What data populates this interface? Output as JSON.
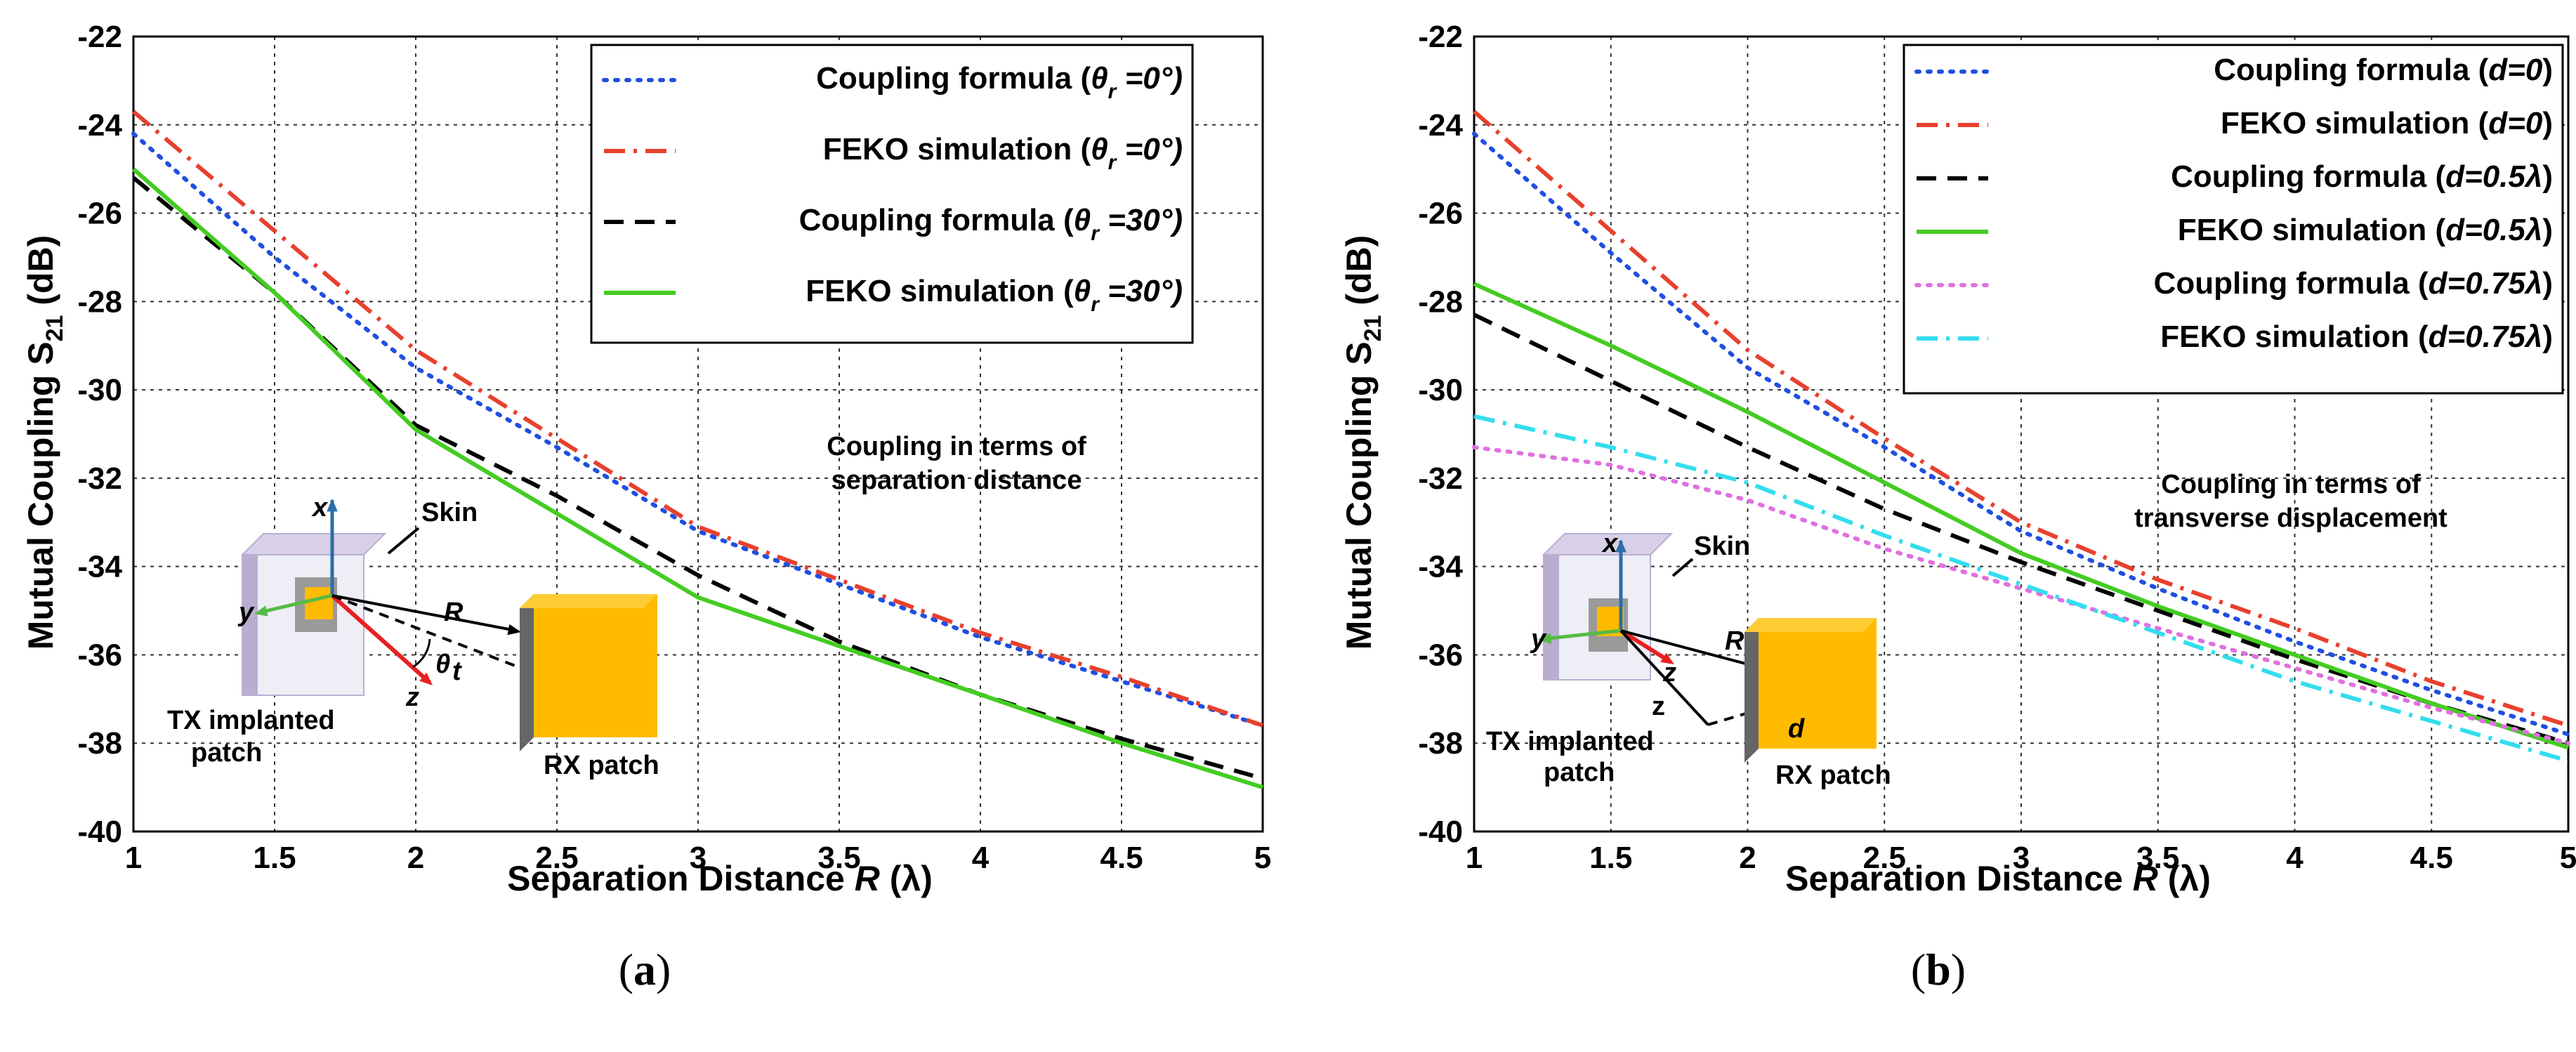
{
  "chart_data": [
    {
      "type": "line",
      "panel": "a",
      "caption": "(a)",
      "xlabel": "Separation Distance R (λ)",
      "ylabel": "Mutual Coupling S21 (dB)",
      "xlim": [
        1,
        5
      ],
      "ylim": [
        -40,
        -22
      ],
      "xticks": [
        1,
        1.5,
        2,
        2.5,
        3,
        3.5,
        4,
        4.5,
        5
      ],
      "yticks": [
        -40,
        -38,
        -36,
        -34,
        -32,
        -30,
        -28,
        -26,
        -24,
        -22
      ],
      "xtick_labels": [
        "1",
        "1.5",
        "2",
        "2.5",
        "3",
        "3.5",
        "4",
        "4.5",
        "5"
      ],
      "ytick_labels": [
        "-40",
        "-38",
        "-36",
        "-34",
        "-32",
        "-30",
        "-28",
        "-26",
        "-24",
        "-22"
      ],
      "grid": true,
      "legend_position": "top-right",
      "series": [
        {
          "name": "Coupling formula (θr =0°)",
          "label_text": "Coupling formula (",
          "label_var": "θ",
          "label_sub": "r",
          "label_val": " =0°)",
          "color": "#1f4fe0",
          "dash": "dotted",
          "x": [
            1,
            1.5,
            2,
            2.5,
            3,
            3.5,
            4,
            4.5,
            5
          ],
          "y": [
            -24.2,
            -27.0,
            -29.5,
            -31.3,
            -33.2,
            -34.4,
            -35.6,
            -36.6,
            -37.6
          ]
        },
        {
          "name": "FEKO simulation (θr =0°)",
          "label_text": "FEKO simulation (",
          "label_var": "θ",
          "label_sub": "r",
          "label_val": " =0°)",
          "color": "#e8402e",
          "dash": "dashdot",
          "x": [
            1,
            1.5,
            2,
            2.5,
            3,
            3.5,
            4,
            4.5,
            5
          ],
          "y": [
            -23.7,
            -26.4,
            -29.1,
            -31.1,
            -33.1,
            -34.3,
            -35.5,
            -36.5,
            -37.6
          ]
        },
        {
          "name": "Coupling formula (θr =30°)",
          "label_text": "Coupling formula (",
          "label_var": "θ",
          "label_sub": "r",
          "label_val": " =30°)",
          "color": "#000000",
          "dash": "dashed",
          "x": [
            1,
            1.5,
            2,
            2.5,
            3,
            3.5,
            4,
            4.5,
            5
          ],
          "y": [
            -25.2,
            -27.8,
            -30.8,
            -32.4,
            -34.2,
            -35.7,
            -36.9,
            -37.9,
            -38.8
          ]
        },
        {
          "name": "FEKO simulation (θr =30°)",
          "label_text": "FEKO simulation (",
          "label_var": "θ",
          "label_sub": "r",
          "label_val": " =30°)",
          "color": "#44cc22",
          "dash": "solid",
          "x": [
            1,
            1.5,
            2,
            2.5,
            3,
            3.5,
            4,
            4.5,
            5
          ],
          "y": [
            -25.0,
            -27.8,
            -30.9,
            -32.8,
            -34.7,
            -35.8,
            -36.9,
            -38.0,
            -39.0
          ]
        }
      ],
      "annotation": [
        "Coupling in terms of",
        "separation distance"
      ],
      "inset_labels": {
        "skin": "Skin",
        "x_axis": "x",
        "y_axis": "y",
        "z_axis": "z",
        "range": "R",
        "angle": "θ",
        "angle_sub": "t",
        "tx": [
          "TX implanted",
          "patch"
        ],
        "rx": "RX patch"
      }
    },
    {
      "type": "line",
      "panel": "b",
      "caption": "(b)",
      "xlabel": "Separation Distance R (λ)",
      "ylabel": "Mutual Coupling S21 (dB)",
      "xlim": [
        1,
        5
      ],
      "ylim": [
        -40,
        -22
      ],
      "xticks": [
        1,
        1.5,
        2,
        2.5,
        3,
        3.5,
        4,
        4.5,
        5
      ],
      "yticks": [
        -40,
        -38,
        -36,
        -34,
        -32,
        -30,
        -28,
        -26,
        -24,
        -22
      ],
      "xtick_labels": [
        "1",
        "1.5",
        "2",
        "2.5",
        "3",
        "3.5",
        "4",
        "4.5",
        "5"
      ],
      "ytick_labels": [
        "-40",
        "-38",
        "-36",
        "-34",
        "-32",
        "-30",
        "-28",
        "-26",
        "-24",
        "-22"
      ],
      "grid": true,
      "legend_position": "top-right",
      "series": [
        {
          "name": "Coupling formula (d=0)",
          "label_text": "Coupling formula (",
          "label_var": "d=0",
          "label_sub": "",
          "label_val": ")",
          "color": "#1f4fe0",
          "dash": "dotted",
          "x": [
            1,
            1.5,
            2,
            2.5,
            3,
            3.5,
            4,
            4.5,
            5
          ],
          "y": [
            -24.2,
            -26.9,
            -29.5,
            -31.3,
            -33.2,
            -34.5,
            -35.7,
            -36.8,
            -37.8
          ]
        },
        {
          "name": "FEKO simulation (d=0)",
          "label_text": "FEKO simulation (",
          "label_var": "d=0",
          "label_sub": "",
          "label_val": ")",
          "color": "#e8402e",
          "dash": "dashdot",
          "x": [
            1,
            1.5,
            2,
            2.5,
            3,
            3.5,
            4,
            4.5,
            5
          ],
          "y": [
            -23.7,
            -26.4,
            -29.1,
            -31.1,
            -33.0,
            -34.3,
            -35.4,
            -36.6,
            -37.6
          ]
        },
        {
          "name": "Coupling formula (d=0.5λ)",
          "label_text": "Coupling formula (",
          "label_var": "d=0.5λ",
          "label_sub": "",
          "label_val": ")",
          "color": "#000000",
          "dash": "dashed",
          "x": [
            1,
            1.5,
            2,
            2.5,
            3,
            3.5,
            4,
            4.5,
            5
          ],
          "y": [
            -28.3,
            -29.8,
            -31.3,
            -32.7,
            -33.9,
            -35.0,
            -36.1,
            -37.1,
            -38.0
          ]
        },
        {
          "name": "FEKO simulation (d=0.5λ)",
          "label_text": "FEKO simulation (",
          "label_var": "d=0.5λ",
          "label_sub": "",
          "label_val": ")",
          "color": "#44cc22",
          "dash": "solid",
          "x": [
            1,
            1.5,
            2,
            2.5,
            3,
            3.5,
            4,
            4.5,
            5
          ],
          "y": [
            -27.6,
            -29.0,
            -30.5,
            -32.1,
            -33.7,
            -34.9,
            -36.0,
            -37.1,
            -38.1
          ]
        },
        {
          "name": "Coupling formula (d=0.75λ)",
          "label_text": "Coupling formula (",
          "label_var": "d=0.75λ",
          "label_sub": "",
          "label_val": ")",
          "color": "#e070e0",
          "dash": "dotted",
          "x": [
            1,
            1.5,
            2,
            2.5,
            3,
            3.5,
            4,
            4.5,
            5
          ],
          "y": [
            -31.3,
            -31.7,
            -32.5,
            -33.6,
            -34.5,
            -35.4,
            -36.3,
            -37.2,
            -38.0
          ]
        },
        {
          "name": "FEKO simulation (d=0.75λ)",
          "label_text": "FEKO simulation (",
          "label_var": "d=0.75λ",
          "label_sub": "",
          "label_val": ")",
          "color": "#33ddee",
          "dash": "dashdot",
          "x": [
            1,
            1.5,
            2,
            2.5,
            3,
            3.5,
            4,
            4.5,
            5
          ],
          "y": [
            -30.6,
            -31.3,
            -32.1,
            -33.3,
            -34.4,
            -35.5,
            -36.6,
            -37.5,
            -38.4
          ]
        }
      ],
      "annotation": [
        "Coupling in terms of",
        "transverse displacement"
      ],
      "inset_labels": {
        "skin": "Skin",
        "x_axis": "x",
        "y_axis": "y",
        "z_axis": "z",
        "range": "R",
        "z_label": "z",
        "d_label": "d",
        "tx": [
          "TX implanted",
          "patch"
        ],
        "rx": "RX patch"
      }
    }
  ]
}
